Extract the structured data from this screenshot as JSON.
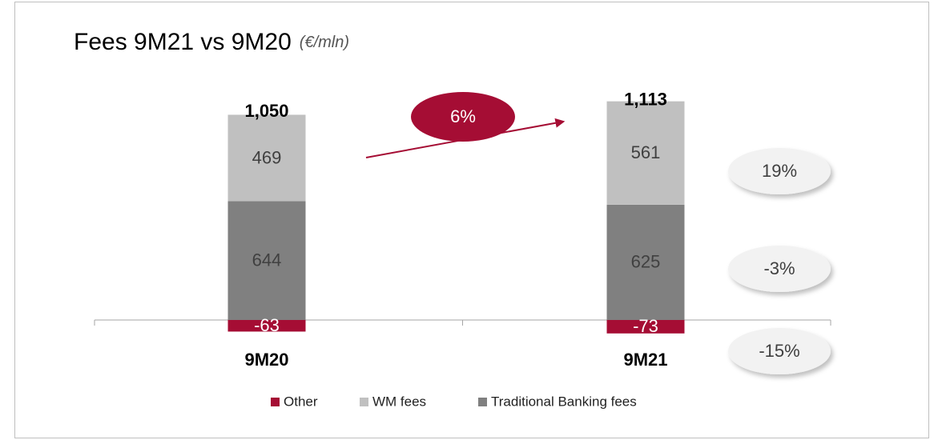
{
  "chart_data": {
    "type": "stacked_bar",
    "title": "Fees 9M21 vs 9M20",
    "subtitle": "(€/mln)",
    "categories": [
      "9M20",
      "9M21"
    ],
    "series": [
      {
        "name": "Other",
        "color": "#a50d34",
        "values": [
          -63,
          -73
        ],
        "change": -15,
        "change_label": "-15%"
      },
      {
        "name": "WM fees",
        "color": "#c0c0c0",
        "values": [
          469,
          561
        ],
        "change": 19,
        "change_label": "19%"
      },
      {
        "name": "Traditional Banking fees",
        "color": "#808080",
        "values": [
          644,
          625
        ],
        "change": -3,
        "change_label": "-3%"
      }
    ],
    "totals": [
      1050,
      1113
    ],
    "total_labels": [
      "1,050",
      "1,113"
    ],
    "growth": 6,
    "growth_label": "6%",
    "ylim": [
      -100,
      1200
    ]
  }
}
